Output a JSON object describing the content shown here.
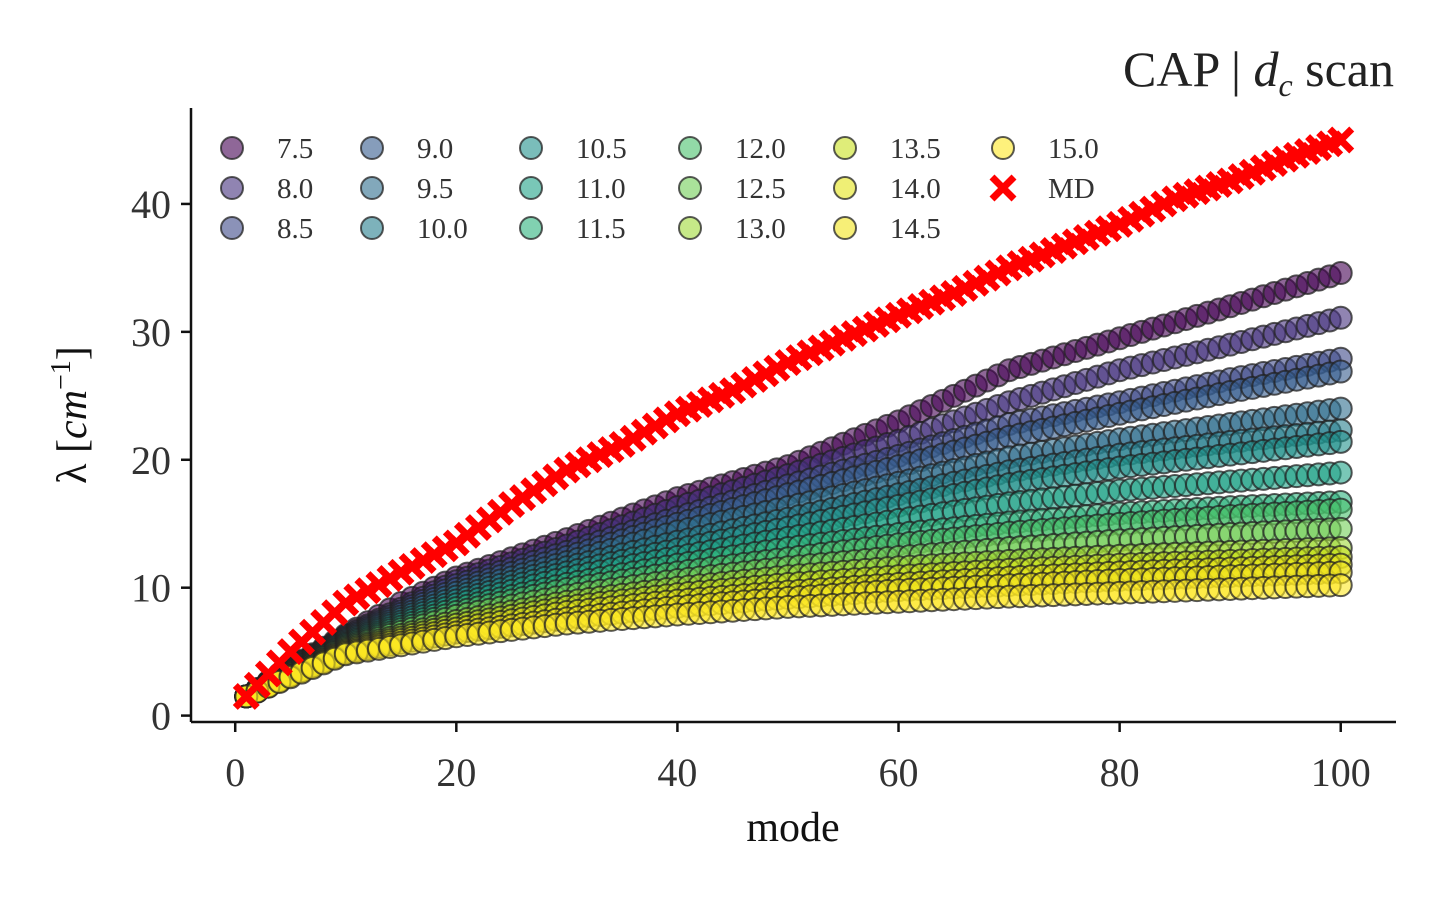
{
  "chart_data": {
    "type": "scatter",
    "title": "CAP | d_c scan",
    "title_parts": {
      "prefix": "CAP | ",
      "var": "d",
      "sub": "c",
      "suffix": " scan"
    },
    "xlabel": "mode",
    "ylabel": "λ [cm⁻¹]",
    "ylabel_parts": {
      "prefix": "λ [",
      "unit": "cm",
      "exp": "−1",
      "suffix": "]"
    },
    "xlim": [
      -4,
      105
    ],
    "ylim": [
      -0.5,
      47.5
    ],
    "xticks": [
      0,
      20,
      40,
      60,
      80,
      100
    ],
    "yticks": [
      0,
      10,
      20,
      30,
      40
    ],
    "grid": false,
    "legend": {
      "placement": "top-left",
      "columns": 7
    },
    "x": {
      "start": 1,
      "end": 100
    },
    "series": [
      {
        "name": "7.5",
        "color": "#440154",
        "points": [
          [
            1,
            1.5
          ],
          [
            5,
            3.8
          ],
          [
            10,
            6.3
          ],
          [
            15,
            8.8
          ],
          [
            20,
            10.8
          ],
          [
            30,
            13.8
          ],
          [
            40,
            17.0
          ],
          [
            50,
            19.5
          ],
          [
            60,
            23.0
          ],
          [
            70,
            27.0
          ],
          [
            80,
            29.5
          ],
          [
            90,
            32.0
          ],
          [
            100,
            34.6
          ]
        ]
      },
      {
        "name": "8.0",
        "color": "#46327e",
        "points": [
          [
            1,
            1.5
          ],
          [
            5,
            3.7
          ],
          [
            10,
            6.2
          ],
          [
            20,
            10.5
          ],
          [
            30,
            13.3
          ],
          [
            40,
            16.3
          ],
          [
            50,
            18.8
          ],
          [
            60,
            21.5
          ],
          [
            70,
            24.5
          ],
          [
            80,
            27.0
          ],
          [
            90,
            29.0
          ],
          [
            100,
            31.1
          ]
        ]
      },
      {
        "name": "8.5",
        "color": "#3e4989",
        "points": [
          [
            1,
            1.5
          ],
          [
            5,
            3.7
          ],
          [
            10,
            6.1
          ],
          [
            20,
            10.2
          ],
          [
            30,
            12.8
          ],
          [
            40,
            15.5
          ],
          [
            50,
            18.0
          ],
          [
            60,
            20.3
          ],
          [
            70,
            22.8
          ],
          [
            80,
            24.5
          ],
          [
            90,
            26.3
          ],
          [
            100,
            27.9
          ]
        ]
      },
      {
        "name": "9.0",
        "color": "#365c8d",
        "points": [
          [
            1,
            1.5
          ],
          [
            5,
            3.6
          ],
          [
            10,
            6.0
          ],
          [
            20,
            9.9
          ],
          [
            30,
            12.4
          ],
          [
            40,
            15.0
          ],
          [
            50,
            17.3
          ],
          [
            60,
            19.5
          ],
          [
            70,
            21.8
          ],
          [
            80,
            23.6
          ],
          [
            90,
            25.3
          ],
          [
            100,
            26.9
          ]
        ]
      },
      {
        "name": "9.5",
        "color": "#2e6e8e",
        "points": [
          [
            1,
            1.5
          ],
          [
            5,
            3.6
          ],
          [
            10,
            5.9
          ],
          [
            20,
            9.6
          ],
          [
            30,
            12.0
          ],
          [
            40,
            14.4
          ],
          [
            50,
            16.3
          ],
          [
            60,
            18.2
          ],
          [
            70,
            20.2
          ],
          [
            80,
            21.6
          ],
          [
            90,
            22.8
          ],
          [
            100,
            24.0
          ]
        ]
      },
      {
        "name": "10.0",
        "color": "#277f8e",
        "points": [
          [
            1,
            1.5
          ],
          [
            5,
            3.5
          ],
          [
            10,
            5.8
          ],
          [
            20,
            9.3
          ],
          [
            30,
            11.6
          ],
          [
            40,
            13.6
          ],
          [
            50,
            15.4
          ],
          [
            60,
            17.3
          ],
          [
            70,
            19.1
          ],
          [
            80,
            20.4
          ],
          [
            90,
            21.4
          ],
          [
            100,
            22.3
          ]
        ]
      },
      {
        "name": "10.5",
        "color": "#21918c",
        "points": [
          [
            1,
            1.5
          ],
          [
            5,
            3.5
          ],
          [
            10,
            5.7
          ],
          [
            20,
            9.0
          ],
          [
            30,
            11.2
          ],
          [
            40,
            13.0
          ],
          [
            50,
            14.7
          ],
          [
            60,
            16.4
          ],
          [
            70,
            18.1
          ],
          [
            80,
            19.4
          ],
          [
            90,
            20.4
          ],
          [
            100,
            21.4
          ]
        ]
      },
      {
        "name": "11.0",
        "color": "#1fa187",
        "points": [
          [
            1,
            1.5
          ],
          [
            5,
            3.4
          ],
          [
            10,
            5.6
          ],
          [
            20,
            8.7
          ],
          [
            30,
            10.8
          ],
          [
            40,
            12.4
          ],
          [
            50,
            13.9
          ],
          [
            60,
            15.3
          ],
          [
            70,
            16.6
          ],
          [
            80,
            17.6
          ],
          [
            90,
            18.3
          ],
          [
            100,
            19.0
          ]
        ]
      },
      {
        "name": "11.5",
        "color": "#2db27d",
        "points": [
          [
            1,
            1.5
          ],
          [
            5,
            3.4
          ],
          [
            10,
            5.5
          ],
          [
            20,
            8.4
          ],
          [
            30,
            10.3
          ],
          [
            40,
            11.8
          ],
          [
            50,
            13.1
          ],
          [
            60,
            14.2
          ],
          [
            70,
            15.1
          ],
          [
            80,
            15.8
          ],
          [
            90,
            16.3
          ],
          [
            100,
            16.7
          ]
        ]
      },
      {
        "name": "12.0",
        "color": "#4ac16d",
        "points": [
          [
            1,
            1.5
          ],
          [
            5,
            3.3
          ],
          [
            10,
            5.4
          ],
          [
            20,
            8.1
          ],
          [
            30,
            9.9
          ],
          [
            40,
            11.2
          ],
          [
            50,
            12.3
          ],
          [
            60,
            13.4
          ],
          [
            70,
            14.3
          ],
          [
            80,
            15.0
          ],
          [
            90,
            15.6
          ],
          [
            100,
            16.1
          ]
        ]
      },
      {
        "name": "12.5",
        "color": "#71cf57",
        "points": [
          [
            1,
            1.5
          ],
          [
            5,
            3.3
          ],
          [
            10,
            5.3
          ],
          [
            20,
            7.8
          ],
          [
            30,
            9.4
          ],
          [
            40,
            10.6
          ],
          [
            50,
            11.6
          ],
          [
            60,
            12.4
          ],
          [
            70,
            13.1
          ],
          [
            80,
            13.7
          ],
          [
            90,
            14.2
          ],
          [
            100,
            14.6
          ]
        ]
      },
      {
        "name": "13.0",
        "color": "#a0da39",
        "points": [
          [
            1,
            1.5
          ],
          [
            5,
            3.2
          ],
          [
            10,
            5.2
          ],
          [
            20,
            7.4
          ],
          [
            30,
            8.9
          ],
          [
            40,
            10.0
          ],
          [
            50,
            10.9
          ],
          [
            60,
            11.6
          ],
          [
            70,
            12.1
          ],
          [
            80,
            12.5
          ],
          [
            90,
            12.8
          ],
          [
            100,
            13.1
          ]
        ]
      },
      {
        "name": "13.5",
        "color": "#cae11f",
        "points": [
          [
            1,
            1.5
          ],
          [
            5,
            3.2
          ],
          [
            10,
            5.1
          ],
          [
            20,
            7.1
          ],
          [
            30,
            8.5
          ],
          [
            40,
            9.5
          ],
          [
            50,
            10.3
          ],
          [
            60,
            10.9
          ],
          [
            70,
            11.4
          ],
          [
            80,
            11.8
          ],
          [
            90,
            12.1
          ],
          [
            100,
            12.4
          ]
        ]
      },
      {
        "name": "14.0",
        "color": "#e5e419",
        "points": [
          [
            1,
            1.5
          ],
          [
            5,
            3.1
          ],
          [
            10,
            5.0
          ],
          [
            20,
            6.8
          ],
          [
            30,
            8.1
          ],
          [
            40,
            9.0
          ],
          [
            50,
            9.7
          ],
          [
            60,
            10.3
          ],
          [
            70,
            10.8
          ],
          [
            80,
            11.2
          ],
          [
            90,
            11.5
          ],
          [
            100,
            11.8
          ]
        ]
      },
      {
        "name": "14.5",
        "color": "#f1e51d",
        "points": [
          [
            1,
            1.5
          ],
          [
            5,
            3.1
          ],
          [
            10,
            4.9
          ],
          [
            20,
            6.5
          ],
          [
            30,
            7.6
          ],
          [
            40,
            8.5
          ],
          [
            50,
            9.2
          ],
          [
            60,
            9.8
          ],
          [
            70,
            10.2
          ],
          [
            80,
            10.6
          ],
          [
            90,
            10.9
          ],
          [
            100,
            11.2
          ]
        ]
      },
      {
        "name": "15.0",
        "color": "#fde725",
        "points": [
          [
            1,
            1.5
          ],
          [
            5,
            3.0
          ],
          [
            10,
            4.8
          ],
          [
            20,
            6.2
          ],
          [
            30,
            7.2
          ],
          [
            40,
            7.9
          ],
          [
            50,
            8.5
          ],
          [
            60,
            8.9
          ],
          [
            70,
            9.3
          ],
          [
            80,
            9.6
          ],
          [
            90,
            9.9
          ],
          [
            100,
            10.2
          ]
        ]
      },
      {
        "name": "MD",
        "color": "#ff0000",
        "marker": "x",
        "points": [
          [
            1,
            1.5
          ],
          [
            5,
            5.0
          ],
          [
            10,
            8.8
          ],
          [
            15,
            11.2
          ],
          [
            20,
            13.5
          ],
          [
            25,
            16.5
          ],
          [
            30,
            19.2
          ],
          [
            35,
            21.2
          ],
          [
            40,
            23.6
          ],
          [
            45,
            25.4
          ],
          [
            50,
            27.6
          ],
          [
            55,
            29.5
          ],
          [
            60,
            31.3
          ],
          [
            65,
            33.0
          ],
          [
            70,
            35.0
          ],
          [
            75,
            36.7
          ],
          [
            80,
            38.4
          ],
          [
            85,
            40.4
          ],
          [
            90,
            41.8
          ],
          [
            95,
            43.5
          ],
          [
            100,
            45.0
          ]
        ]
      }
    ]
  }
}
